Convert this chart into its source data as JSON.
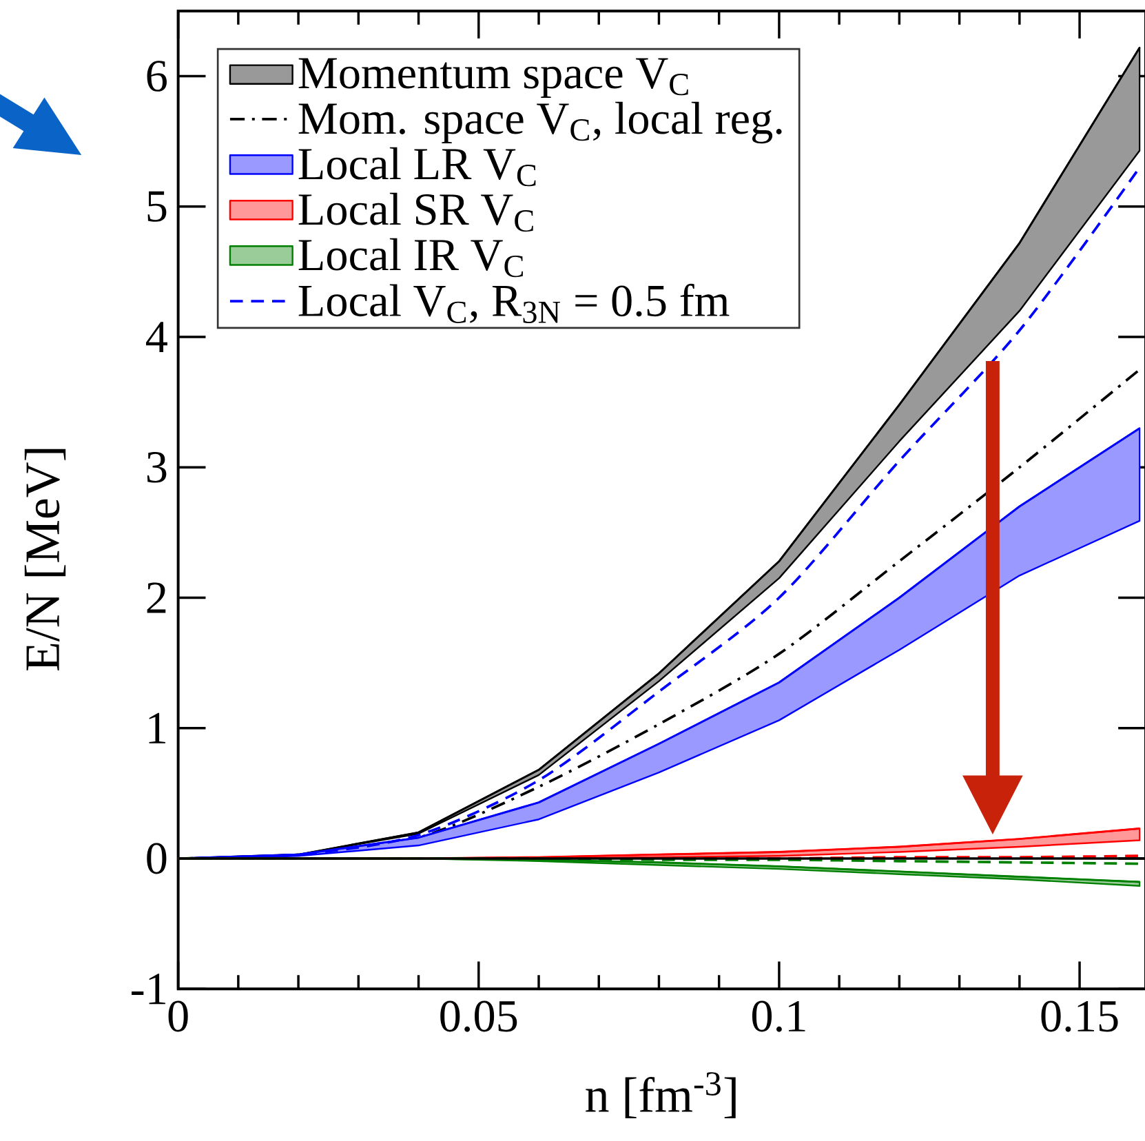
{
  "chart_data": {
    "type": "line",
    "xlabel": "n [fm$^{-3}$]",
    "ylabel": "E/N [MeV]",
    "x": [
      0,
      0.02,
      0.04,
      0.06,
      0.08,
      0.1,
      0.12,
      0.14,
      0.16
    ],
    "xlim": [
      0,
      0.161
    ],
    "xticks": [
      0,
      0.05,
      0.1,
      0.15
    ],
    "ylim": [
      -1,
      6.5
    ],
    "yticks": [
      -1,
      0,
      1,
      2,
      3,
      4,
      5,
      6
    ],
    "legend": "top left",
    "marker": "none",
    "ref_lines": [
      {
        "axis": "y",
        "value": 0,
        "color": "#000000"
      }
    ],
    "series": [
      {
        "name": "Momentum space V$_{C}$",
        "color": "#000000",
        "values": [
          0,
          0.03,
          0.2,
          0.68,
          1.42,
          2.28,
          3.48,
          4.72,
          6.22
        ],
        "lower": [
          0,
          0.03,
          0.19,
          0.64,
          1.36,
          2.15,
          3.2,
          4.2,
          5.43
        ],
        "upper": [
          0,
          0.03,
          0.2,
          0.68,
          1.42,
          2.28,
          3.48,
          4.72,
          6.22
        ]
      },
      {
        "name": "Mom. space V$_{C}$, local reg.",
        "line_style": "dashdot",
        "color": "#000000",
        "values": [
          0,
          0.03,
          0.16,
          0.55,
          1.03,
          1.57,
          2.28,
          3.0,
          3.75
        ]
      },
      {
        "name": "Local LR V$_{C}$",
        "color": "#0000ff",
        "values": [
          0,
          0.03,
          0.16,
          0.43,
          0.88,
          1.35,
          2.0,
          2.7,
          3.3
        ],
        "lower": [
          0,
          0.02,
          0.1,
          0.3,
          0.66,
          1.06,
          1.6,
          2.17,
          2.59
        ],
        "upper": [
          0,
          0.03,
          0.16,
          0.43,
          0.88,
          1.35,
          2.0,
          2.7,
          3.3
        ]
      },
      {
        "name": "Local SR V$_{C}$",
        "color": "#ff0000",
        "values": [
          0,
          0,
          0,
          0.01,
          0.03,
          0.05,
          0.09,
          0.15,
          0.23
        ],
        "lower": [
          0,
          0,
          0,
          0,
          0.01,
          0.02,
          0.05,
          0.09,
          0.14
        ],
        "upper": [
          0,
          0,
          0,
          0.01,
          0.03,
          0.05,
          0.09,
          0.15,
          0.23
        ]
      },
      {
        "name": "Local IR V$_{C}$",
        "color": "#008000",
        "values": [
          0,
          0,
          0,
          -0.01,
          -0.03,
          -0.06,
          -0.1,
          -0.14,
          -0.18
        ],
        "lower": [
          0,
          0,
          0,
          -0.02,
          -0.05,
          -0.08,
          -0.12,
          -0.16,
          -0.21
        ],
        "upper": [
          0,
          0,
          0,
          -0.01,
          -0.03,
          -0.06,
          -0.1,
          -0.14,
          -0.18
        ]
      },
      {
        "name": "Local V$_{C}$, R$_{3N}$ = 0.5 fm",
        "line_style": "dashed",
        "color": "#0000ff",
        "values": [
          0,
          0.03,
          0.18,
          0.6,
          1.28,
          2.0,
          3.05,
          4.05,
          5.3
        ]
      },
      {
        "line_style": "dashed",
        "color": "#ff0000",
        "values": [
          0,
          0,
          0,
          0,
          0,
          0,
          0.01,
          0.01,
          0.02
        ]
      },
      {
        "line_style": "dashed",
        "color": "#008000",
        "values": [
          0,
          0,
          0,
          0,
          -0.01,
          -0.01,
          -0.02,
          -0.03,
          -0.04
        ]
      }
    ]
  }
}
